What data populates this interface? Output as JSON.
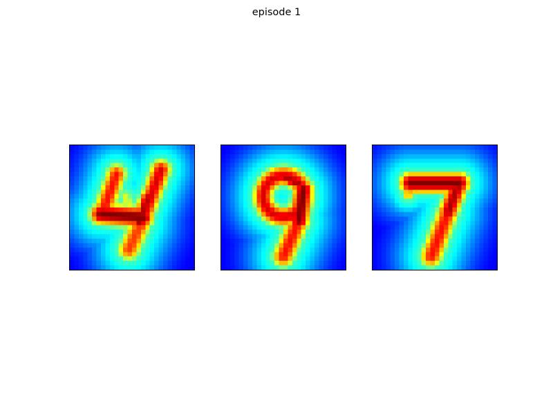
{
  "figure": {
    "title": "episode 1"
  },
  "panels": [
    {
      "depicts": "digit-4-heatmap"
    },
    {
      "depicts": "digit-9-heatmap"
    },
    {
      "depicts": "digit-7-heatmap"
    }
  ],
  "colormap": {
    "name": "jet",
    "background": "#00008f",
    "peak": "#800000"
  }
}
